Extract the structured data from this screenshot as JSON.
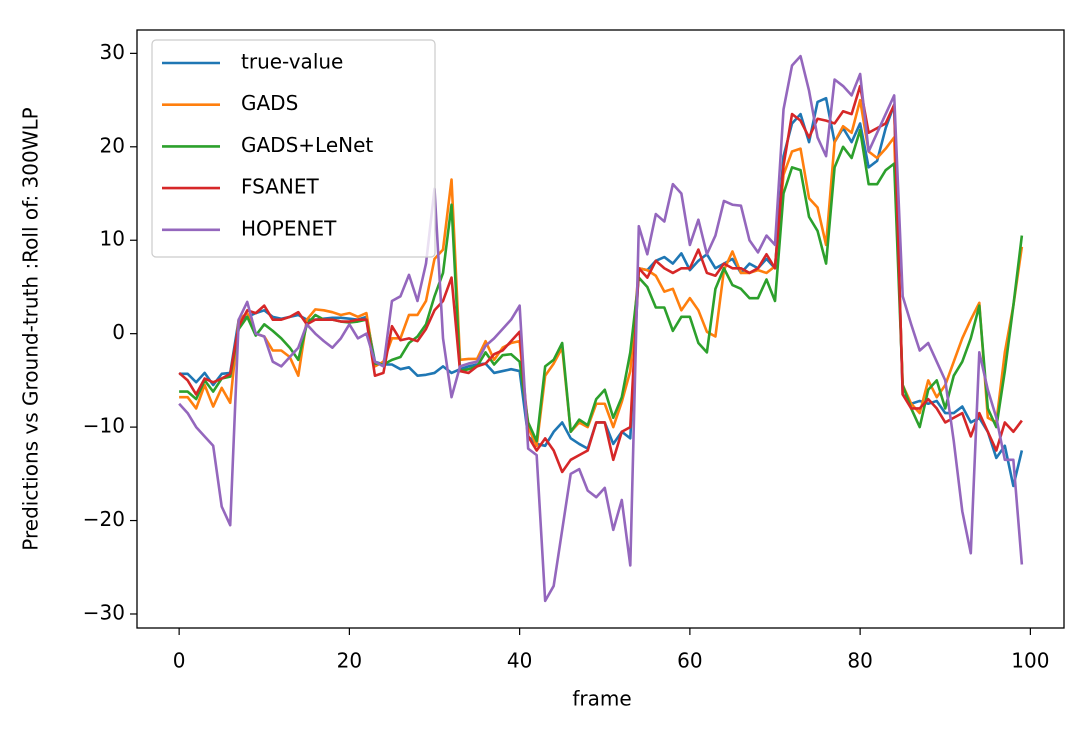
{
  "chart_data": {
    "type": "line",
    "x_label": "frame",
    "y_label": "Predictions vs Ground-truth :Roll of: 300WLP",
    "legend": "upper left",
    "xlim": [
      -4.95,
      103.95
    ],
    "ylim": [
      -31.5,
      32.5
    ],
    "xticks": [
      0,
      20,
      40,
      60,
      80,
      100
    ],
    "yticks": [
      {
        "value": -30,
        "label": "−30"
      },
      {
        "value": -20,
        "label": "−20"
      },
      {
        "value": -10,
        "label": "−10"
      },
      0,
      10,
      20,
      30
    ],
    "x": [
      0,
      1,
      2,
      3,
      4,
      5,
      6,
      7,
      8,
      9,
      10,
      11,
      12,
      13,
      14,
      15,
      16,
      17,
      18,
      19,
      20,
      21,
      22,
      23,
      24,
      25,
      26,
      27,
      28,
      29,
      30,
      31,
      32,
      33,
      34,
      35,
      36,
      37,
      38,
      39,
      40,
      41,
      42,
      43,
      44,
      45,
      46,
      47,
      48,
      49,
      50,
      51,
      52,
      53,
      54,
      55,
      56,
      57,
      58,
      59,
      60,
      61,
      62,
      63,
      64,
      65,
      66,
      67,
      68,
      69,
      70,
      71,
      72,
      73,
      74,
      75,
      76,
      77,
      78,
      79,
      80,
      81,
      82,
      83,
      84,
      85,
      86,
      87,
      88,
      89,
      90,
      91,
      92,
      93,
      94,
      95,
      96,
      97,
      98,
      99
    ],
    "series": [
      {
        "name": "true-value",
        "color": "#1f77b4",
        "values": [
          -4.3,
          -4.3,
          -5.2,
          -4.2,
          -5.5,
          -4.3,
          -4.2,
          1.5,
          1.8,
          2.2,
          2.5,
          1.8,
          1.6,
          1.8,
          2.0,
          1.5,
          1.5,
          1.6,
          1.7,
          1.7,
          1.6,
          1.5,
          1.8,
          -3.0,
          -3.3,
          -3.3,
          -3.8,
          -3.6,
          -4.5,
          -4.4,
          -4.2,
          -3.5,
          -4.2,
          -3.8,
          -3.5,
          -3.3,
          -3.2,
          -4.2,
          -4.0,
          -3.8,
          -4.0,
          -11.0,
          -11.8,
          -12.0,
          -10.5,
          -9.5,
          -11.2,
          -11.8,
          -12.3,
          -9.5,
          -9.5,
          -11.8,
          -10.5,
          -11.2,
          7.0,
          6.8,
          7.8,
          8.2,
          7.5,
          8.6,
          6.8,
          7.8,
          8.5,
          7.0,
          7.5,
          8.0,
          6.5,
          7.5,
          7.0,
          8.0,
          7.0,
          19.0,
          22.5,
          23.5,
          20.5,
          24.8,
          25.2,
          20.5,
          22.0,
          20.5,
          22.5,
          17.8,
          18.5,
          22.0,
          24.5,
          -6.5,
          -7.5,
          -7.2,
          -7.5,
          -7.2,
          -8.5,
          -8.5,
          -7.8,
          -9.5,
          -9.0,
          -10.5,
          -13.3,
          -12.0,
          -16.3,
          -12.5
        ]
      },
      {
        "name": "GADS",
        "color": "#ff7f0e",
        "values": [
          -6.8,
          -6.8,
          -8.0,
          -5.5,
          -7.8,
          -5.8,
          -7.4,
          1.5,
          2.2,
          0.0,
          -0.3,
          -1.8,
          -1.8,
          -2.5,
          -4.5,
          1.5,
          2.6,
          2.5,
          2.3,
          2.0,
          2.2,
          1.8,
          2.2,
          -3.5,
          -3.0,
          -0.5,
          -0.5,
          2.0,
          2.0,
          3.5,
          8.0,
          9.0,
          16.5,
          -2.8,
          -2.7,
          -2.7,
          -0.8,
          -2.8,
          -1.5,
          -1.0,
          -0.8,
          -10.0,
          -12.0,
          -4.5,
          -3.2,
          -1.5,
          -10.5,
          -9.5,
          -10.0,
          -7.5,
          -7.5,
          -10.0,
          -7.3,
          -4.0,
          7.0,
          6.8,
          6.2,
          4.5,
          4.8,
          2.5,
          3.8,
          2.5,
          0.2,
          -0.3,
          6.8,
          8.8,
          6.5,
          6.5,
          6.8,
          6.5,
          7.2,
          17.0,
          19.5,
          19.8,
          14.5,
          13.5,
          9.5,
          20.5,
          22.2,
          21.5,
          25.0,
          19.5,
          18.8,
          19.8,
          21.0,
          -5.5,
          -7.5,
          -8.5,
          -5.0,
          -6.8,
          -5.5,
          -3.0,
          -0.5,
          1.5,
          3.3,
          -9.0,
          -9.5,
          -2.0,
          3.0,
          9.3
        ]
      },
      {
        "name": "GADS+LeNet",
        "color": "#2ca02c",
        "values": [
          -6.2,
          -6.2,
          -7.0,
          -5.0,
          -6.2,
          -4.8,
          -4.6,
          0.5,
          1.8,
          -0.2,
          1.0,
          0.3,
          -0.5,
          -1.5,
          -2.8,
          1.0,
          2.0,
          1.5,
          1.5,
          1.3,
          1.2,
          1.3,
          1.5,
          -3.2,
          -3.3,
          -2.8,
          -2.5,
          -1.0,
          -0.3,
          1.0,
          4.0,
          6.5,
          13.8,
          -4.0,
          -3.8,
          -3.5,
          -2.0,
          -3.3,
          -2.3,
          -2.2,
          -3.0,
          -9.5,
          -11.5,
          -3.5,
          -2.8,
          -1.0,
          -10.5,
          -9.2,
          -9.8,
          -7.0,
          -6.0,
          -9.0,
          -6.8,
          -2.0,
          6.0,
          5.0,
          2.8,
          2.8,
          0.3,
          1.8,
          1.8,
          -1.0,
          -2.0,
          4.8,
          7.0,
          5.2,
          4.8,
          3.8,
          3.8,
          5.8,
          3.5,
          15.0,
          17.8,
          17.5,
          12.5,
          11.0,
          7.5,
          17.8,
          20.0,
          18.8,
          21.8,
          16.0,
          16.0,
          17.5,
          18.2,
          -5.5,
          -8.0,
          -10.0,
          -6.0,
          -5.0,
          -8.0,
          -4.5,
          -3.0,
          -0.5,
          3.0,
          -8.0,
          -10.0,
          -4.0,
          3.0,
          10.5
        ]
      },
      {
        "name": "FSANET",
        "color": "#d62728",
        "values": [
          -4.2,
          -5.0,
          -6.5,
          -4.8,
          -5.2,
          -4.8,
          -4.3,
          0.8,
          2.5,
          2.2,
          3.0,
          1.5,
          1.5,
          1.8,
          2.3,
          1.0,
          1.5,
          1.5,
          1.5,
          1.3,
          1.3,
          1.5,
          1.5,
          -4.5,
          -4.2,
          0.8,
          -0.7,
          -0.5,
          -0.8,
          0.5,
          2.5,
          3.5,
          6.0,
          -4.0,
          -4.2,
          -3.5,
          -3.2,
          -2.2,
          -1.8,
          -0.8,
          0.2,
          -11.0,
          -12.5,
          -11.2,
          -12.5,
          -14.8,
          -13.5,
          -13.0,
          -12.5,
          -9.5,
          -9.5,
          -13.5,
          -10.5,
          -10.0,
          7.0,
          6.0,
          7.8,
          7.0,
          6.5,
          7.0,
          7.0,
          9.0,
          6.5,
          6.2,
          7.5,
          7.0,
          7.0,
          6.5,
          7.0,
          8.5,
          7.0,
          18.0,
          23.5,
          22.8,
          21.0,
          23.0,
          22.8,
          22.5,
          23.8,
          23.5,
          26.5,
          21.5,
          22.0,
          22.5,
          24.5,
          -6.5,
          -8.0,
          -8.0,
          -7.0,
          -8.0,
          -9.5,
          -9.0,
          -8.5,
          -11.0,
          -8.5,
          -10.5,
          -12.5,
          -9.5,
          -10.5,
          -9.3
        ]
      },
      {
        "name": "HOPENET",
        "color": "#9467bd",
        "values": [
          -7.5,
          -8.5,
          -10.0,
          -11.0,
          -12.0,
          -18.5,
          -20.5,
          1.5,
          3.4,
          0.0,
          -0.3,
          -3.0,
          -3.5,
          -2.5,
          -1.5,
          1.0,
          0.0,
          -0.8,
          -1.5,
          -0.5,
          1.0,
          -0.5,
          0.0,
          -3.0,
          -3.5,
          3.5,
          4.0,
          6.3,
          3.5,
          7.5,
          15.5,
          -0.5,
          -6.8,
          -3.5,
          -3.2,
          -3.0,
          -1.3,
          -0.5,
          0.5,
          1.5,
          3.0,
          -12.3,
          -13.0,
          -28.6,
          -27.0,
          -21.0,
          -15.0,
          -14.5,
          -16.8,
          -17.5,
          -16.5,
          -21.0,
          -17.8,
          -24.8,
          11.5,
          8.5,
          12.8,
          12.0,
          16.0,
          15.0,
          9.5,
          12.2,
          8.5,
          10.5,
          14.2,
          13.8,
          13.7,
          10.0,
          8.7,
          10.5,
          9.5,
          24.0,
          28.7,
          29.7,
          26.0,
          21.0,
          19.0,
          27.2,
          26.5,
          25.5,
          27.8,
          19.5,
          21.5,
          23.5,
          25.5,
          4.0,
          1.0,
          -1.8,
          -1.0,
          -3.0,
          -5.0,
          -11.5,
          -19.0,
          -23.5,
          -2.0,
          -6.0,
          -9.0,
          -13.5,
          -13.5,
          -24.7
        ]
      }
    ]
  }
}
